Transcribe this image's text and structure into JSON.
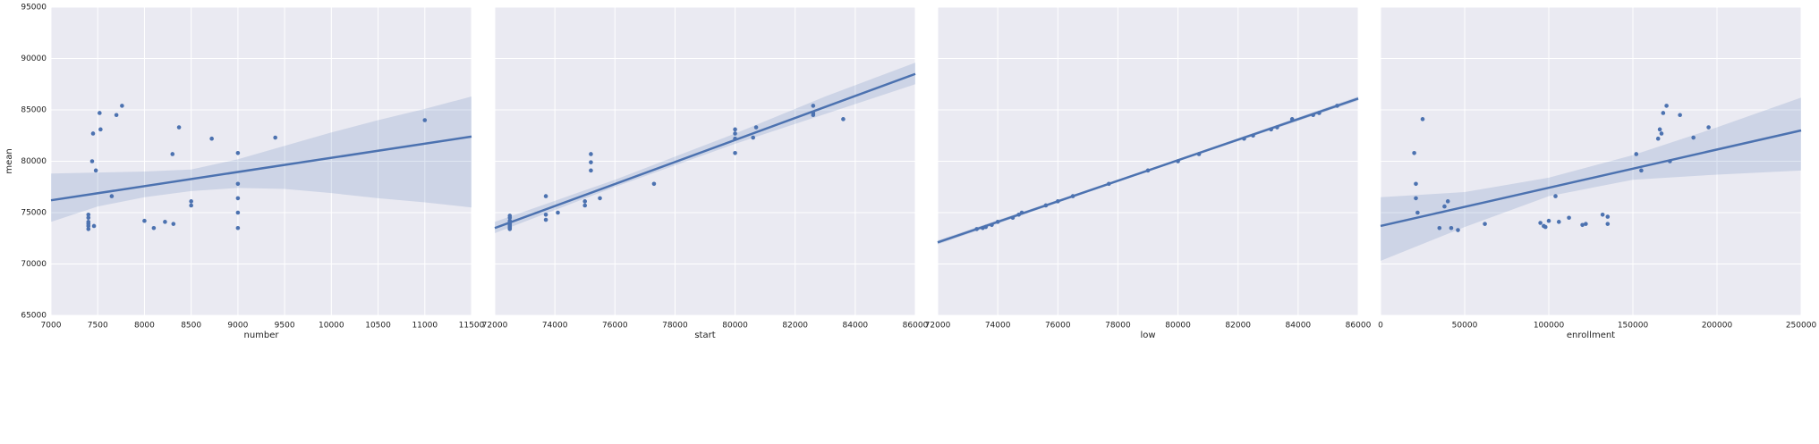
{
  "chart_data": [
    {
      "type": "scatter",
      "x_label": "number",
      "y_label": "mean",
      "color": "#4c72b0",
      "grid": true,
      "xlim": [
        7000,
        11500
      ],
      "xticks": [
        7000,
        7500,
        8000,
        8500,
        9000,
        9500,
        10000,
        10500,
        11000,
        11500
      ],
      "ylim": [
        65000,
        95000
      ],
      "yticks": [
        65000,
        70000,
        75000,
        80000,
        85000,
        90000,
        95000
      ],
      "x": [
        7400,
        7400,
        7400,
        7400,
        7400,
        7400,
        7450,
        7440,
        7480,
        7520,
        7530,
        7460,
        7650,
        7700,
        7760,
        8000,
        8100,
        8220,
        8300,
        8310,
        8370,
        8500,
        8500,
        8720,
        9000,
        9000,
        9000,
        9000,
        9000,
        9400,
        11000
      ],
      "values": [
        73400,
        73700,
        73900,
        74100,
        74500,
        74800,
        82700,
        80000,
        79100,
        84700,
        83100,
        73700,
        76600,
        84500,
        85400,
        74200,
        73500,
        74100,
        80700,
        73900,
        83300,
        75700,
        76100,
        82200,
        80800,
        77800,
        76400,
        75000,
        73500,
        82300,
        84000
      ],
      "fit": {
        "x": [
          7000,
          11500
        ],
        "y": [
          76200,
          82400
        ]
      },
      "ci": {
        "x": [
          7000,
          7500,
          8000,
          8500,
          9000,
          9500,
          10000,
          10500,
          11000,
          11500
        ],
        "lower": [
          74100,
          75600,
          76500,
          77100,
          77400,
          77300,
          76900,
          76400,
          76000,
          75500
        ],
        "upper": [
          78800,
          78900,
          79000,
          79200,
          80200,
          81500,
          82800,
          84000,
          85100,
          86300
        ]
      }
    },
    {
      "type": "scatter",
      "x_label": "start",
      "color": "#4c72b0",
      "grid": true,
      "xlim": [
        72000,
        86000
      ],
      "xticks": [
        72000,
        74000,
        76000,
        78000,
        80000,
        82000,
        84000,
        86000
      ],
      "ylim": [
        65000,
        95000
      ],
      "yticks": [
        65000,
        70000,
        75000,
        80000,
        85000,
        90000,
        95000
      ],
      "x": [
        72500,
        72500,
        72500,
        72500,
        72500,
        72500,
        72500,
        72500,
        72500,
        72500,
        73700,
        73700,
        73700,
        74100,
        75000,
        75000,
        75200,
        75200,
        75200,
        75500,
        77300,
        80000,
        80000,
        80000,
        80000,
        80700,
        80600,
        82600,
        82600,
        82600,
        83600
      ],
      "values": [
        73400,
        73500,
        73600,
        73700,
        73800,
        73900,
        74100,
        74200,
        74500,
        74700,
        76600,
        74300,
        74800,
        75000,
        75700,
        76100,
        80700,
        79900,
        79100,
        76400,
        77800,
        83100,
        82700,
        82200,
        80800,
        83300,
        82300,
        85400,
        84700,
        84500,
        84100
      ],
      "fit": {
        "x": [
          72000,
          86000
        ],
        "y": [
          73500,
          88500
        ]
      },
      "ci": {
        "x": [
          72000,
          76000,
          80000,
          83000,
          86000
        ],
        "lower": [
          73000,
          77500,
          81700,
          84600,
          87500
        ],
        "upper": [
          74100,
          78200,
          82700,
          86300,
          89600
        ]
      }
    },
    {
      "type": "scatter",
      "x_label": "low",
      "color": "#4c72b0",
      "grid": true,
      "xlim": [
        72000,
        86000
      ],
      "xticks": [
        72000,
        74000,
        76000,
        78000,
        80000,
        82000,
        84000,
        86000
      ],
      "ylim": [
        65000,
        95000
      ],
      "yticks": [
        65000,
        70000,
        75000,
        80000,
        85000,
        90000,
        95000
      ],
      "x": [
        73300,
        73500,
        73600,
        73800,
        74000,
        74500,
        74700,
        74800,
        75600,
        76000,
        76500,
        77700,
        79000,
        80000,
        80700,
        82200,
        82500,
        83100,
        83300,
        83800,
        84500,
        84700,
        85300
      ],
      "values": [
        73400,
        73500,
        73600,
        73800,
        74100,
        74500,
        74800,
        75000,
        75700,
        76100,
        76600,
        77800,
        79100,
        80000,
        80700,
        82200,
        82500,
        83100,
        83300,
        84100,
        84500,
        84700,
        85400
      ],
      "fit": {
        "x": [
          72000,
          86000
        ],
        "y": [
          72100,
          86100
        ]
      },
      "ci": {
        "x": [
          72000,
          79000,
          86000
        ],
        "lower": [
          71900,
          79000,
          85900
        ],
        "upper": [
          72300,
          79200,
          86300
        ]
      }
    },
    {
      "type": "scatter",
      "x_label": "enrollment",
      "color": "#4c72b0",
      "grid": true,
      "xlim": [
        0,
        250000
      ],
      "xticks": [
        0,
        50000,
        100000,
        150000,
        200000,
        250000
      ],
      "ylim": [
        65000,
        95000
      ],
      "yticks": [
        65000,
        70000,
        75000,
        80000,
        85000,
        90000,
        95000
      ],
      "x": [
        20000,
        21000,
        21000,
        22000,
        25000,
        35000,
        38000,
        40000,
        42000,
        46000,
        62000,
        95000,
        97000,
        98000,
        100000,
        104000,
        106000,
        112000,
        120000,
        122000,
        132000,
        135000,
        135000,
        152000,
        155000,
        165000,
        166000,
        167000,
        168000,
        170000,
        172000,
        178000,
        186000,
        195000
      ],
      "values": [
        80800,
        77800,
        76400,
        75000,
        84100,
        73500,
        75600,
        76100,
        73500,
        73300,
        73900,
        74000,
        73700,
        73600,
        74200,
        76600,
        74100,
        74500,
        73800,
        73900,
        74800,
        74600,
        73900,
        80700,
        79100,
        82200,
        83100,
        82700,
        84700,
        85400,
        80000,
        84500,
        82300,
        83300
      ],
      "fit": {
        "x": [
          0,
          250000
        ],
        "y": [
          73700,
          83000
        ]
      },
      "ci": {
        "x": [
          0,
          50000,
          100000,
          150000,
          200000,
          250000
        ],
        "lower": [
          70300,
          73600,
          76600,
          78200,
          78700,
          79100
        ],
        "upper": [
          76500,
          77000,
          78400,
          80600,
          83300,
          86200
        ]
      }
    }
  ]
}
